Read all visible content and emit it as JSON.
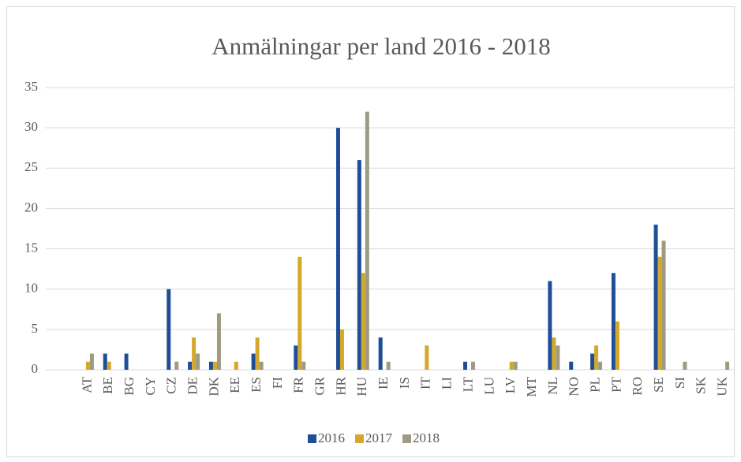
{
  "chart_data": {
    "type": "bar",
    "title": "Anmälningar per land 2016 - 2018",
    "categories": [
      "AT",
      "BE",
      "BG",
      "CY",
      "CZ",
      "DE",
      "DK",
      "EE",
      "ES",
      "FI",
      "FR",
      "GR",
      "HR",
      "HU",
      "IE",
      "IS",
      "IT",
      "LI",
      "LT",
      "LU",
      "LV",
      "MT",
      "NL",
      "NO",
      "PL",
      "PT",
      "RO",
      "SE",
      "SI",
      "SK",
      "UK"
    ],
    "series": [
      {
        "name": "2016",
        "color": "#1f4e96",
        "values": [
          0,
          2,
          2,
          0,
          10,
          1,
          1,
          0,
          2,
          0,
          3,
          0,
          30,
          26,
          4,
          0,
          0,
          0,
          1,
          0,
          0,
          0,
          11,
          1,
          2,
          12,
          0,
          18,
          0,
          0,
          0
        ]
      },
      {
        "name": "2017",
        "color": "#d4a82a",
        "values": [
          1,
          1,
          0,
          0,
          0,
          4,
          1,
          1,
          4,
          0,
          14,
          0,
          5,
          12,
          0,
          0,
          3,
          0,
          0,
          0,
          1,
          0,
          4,
          0,
          3,
          6,
          0,
          14,
          0,
          0,
          0
        ]
      },
      {
        "name": "2018",
        "color": "#9e9b80",
        "values": [
          2,
          0,
          0,
          0,
          1,
          2,
          7,
          0,
          1,
          0,
          1,
          0,
          0,
          32,
          1,
          0,
          0,
          0,
          1,
          0,
          1,
          0,
          3,
          0,
          1,
          0,
          0,
          16,
          1,
          0,
          1
        ]
      }
    ],
    "ylim": [
      0,
      35
    ],
    "yticks": [
      0,
      5,
      10,
      15,
      20,
      25,
      30,
      35
    ],
    "grid": true,
    "legend": "bottom"
  }
}
